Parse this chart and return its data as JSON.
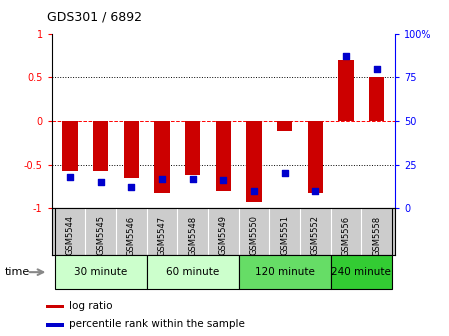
{
  "title": "GDS301 / 6892",
  "samples": [
    "GSM5544",
    "GSM5545",
    "GSM5546",
    "GSM5547",
    "GSM5548",
    "GSM5549",
    "GSM5550",
    "GSM5551",
    "GSM5552",
    "GSM5556",
    "GSM5558"
  ],
  "log_ratio": [
    -0.57,
    -0.57,
    -0.65,
    -0.82,
    -0.62,
    -0.8,
    -0.93,
    -0.12,
    -0.82,
    0.7,
    0.5
  ],
  "percentile_rank": [
    18,
    15,
    12,
    17,
    17,
    16,
    10,
    20,
    10,
    87,
    80
  ],
  "group_data": [
    {
      "label": "30 minute",
      "start": 0,
      "end": 2,
      "color": "#ccffcc"
    },
    {
      "label": "60 minute",
      "start": 3,
      "end": 5,
      "color": "#ccffcc"
    },
    {
      "label": "120 minute",
      "start": 6,
      "end": 8,
      "color": "#66dd66"
    },
    {
      "label": "240 minute",
      "start": 9,
      "end": 10,
      "color": "#33cc33"
    }
  ],
  "bar_color": "#cc0000",
  "dot_color": "#0000cc",
  "ylim_left": [
    -1,
    1
  ],
  "ylim_right": [
    0,
    100
  ],
  "right_ticks": [
    0,
    25,
    50,
    75,
    100
  ],
  "right_tick_labels": [
    "0",
    "25",
    "50",
    "75",
    "100%"
  ],
  "left_ticks": [
    -1,
    -0.5,
    0,
    0.5,
    1
  ],
  "hline_y": [
    0.5,
    0,
    -0.5
  ],
  "hline_styles": [
    "dotted",
    "dashed",
    "dotted"
  ],
  "hline_colors": [
    "black",
    "red",
    "black"
  ],
  "bar_width": 0.5,
  "background_color": "#ffffff",
  "label_bg_color": "#cccccc",
  "time_label": "time",
  "legend_log_ratio": "log ratio",
  "legend_percentile": "percentile rank within the sample"
}
